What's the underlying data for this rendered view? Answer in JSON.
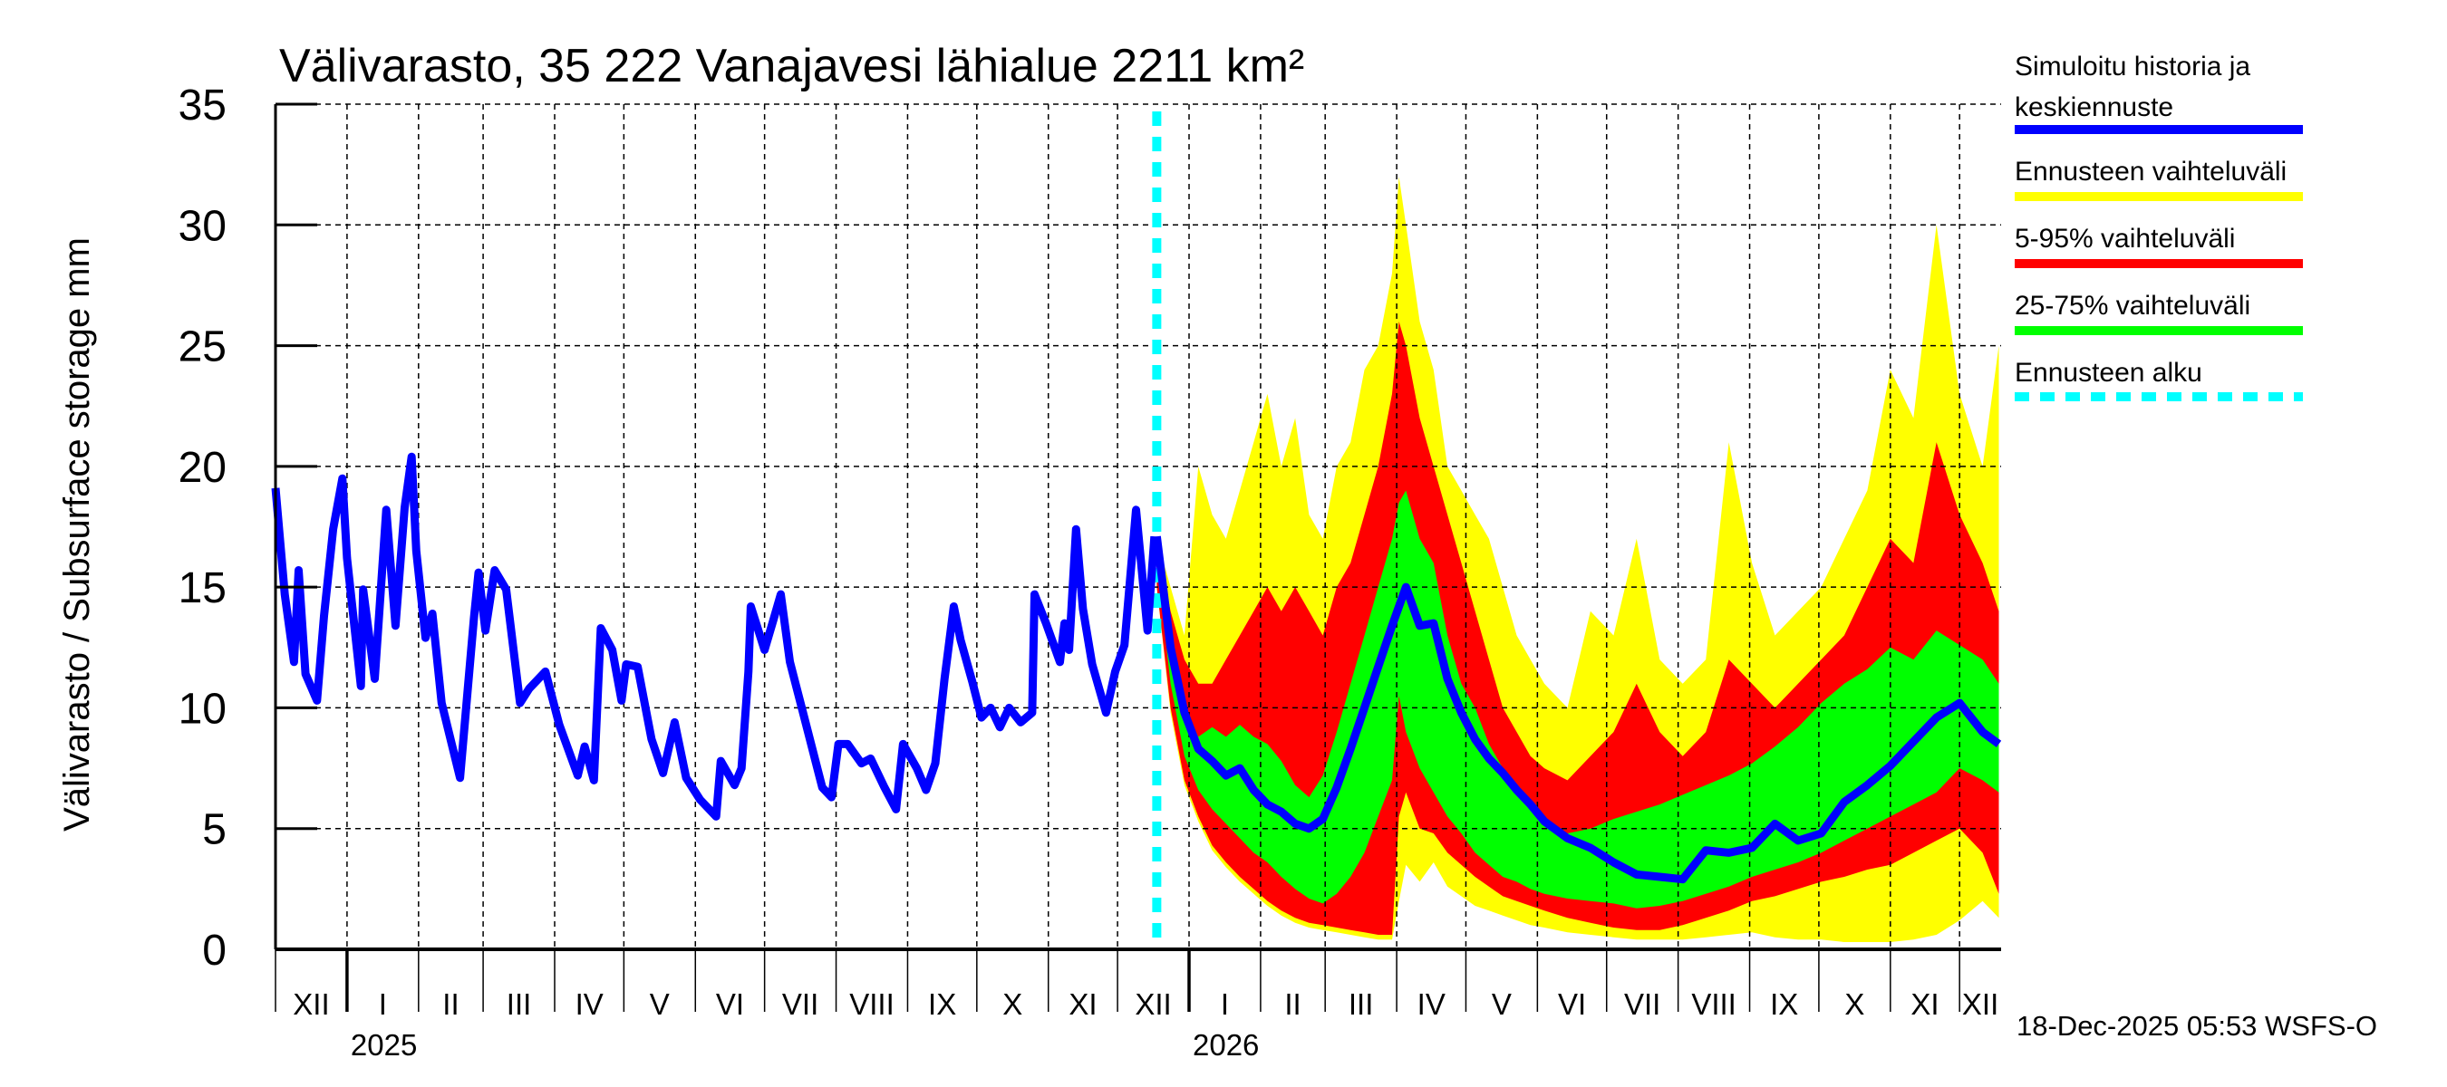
{
  "chart_data": {
    "type": "area",
    "title": "Välivarasto, 35 222 Vanajavesi lähialue 2211 km²",
    "ylabel": "Välivarasto / Subsurface storage  mm",
    "xlabel": "",
    "ylim": [
      0,
      35
    ],
    "yticks": [
      "0",
      "5",
      "10",
      "15",
      "20",
      "25",
      "30",
      "35"
    ],
    "ytick_values": [
      0,
      5,
      10,
      15,
      20,
      25,
      30,
      35
    ],
    "x_unit": "days since 2024-12-01",
    "xlim": [
      0,
      748
    ],
    "grid": true,
    "month_labels": [
      {
        "label": "XII",
        "start": 0,
        "end": 31
      },
      {
        "label": "I",
        "start": 31,
        "end": 62
      },
      {
        "label": "II",
        "start": 62,
        "end": 90
      },
      {
        "label": "III",
        "start": 90,
        "end": 121
      },
      {
        "label": "IV",
        "start": 121,
        "end": 151
      },
      {
        "label": "V",
        "start": 151,
        "end": 182
      },
      {
        "label": "VI",
        "start": 182,
        "end": 212
      },
      {
        "label": "VII",
        "start": 212,
        "end": 243
      },
      {
        "label": "VIII",
        "start": 243,
        "end": 274
      },
      {
        "label": "IX",
        "start": 274,
        "end": 304
      },
      {
        "label": "X",
        "start": 304,
        "end": 335
      },
      {
        "label": "XI",
        "start": 335,
        "end": 365
      },
      {
        "label": "XII",
        "start": 365,
        "end": 396
      },
      {
        "label": "I",
        "start": 396,
        "end": 427
      },
      {
        "label": "II",
        "start": 427,
        "end": 455
      },
      {
        "label": "III",
        "start": 455,
        "end": 486
      },
      {
        "label": "IV",
        "start": 486,
        "end": 516
      },
      {
        "label": "V",
        "start": 516,
        "end": 547
      },
      {
        "label": "VI",
        "start": 547,
        "end": 577
      },
      {
        "label": "VII",
        "start": 577,
        "end": 608
      },
      {
        "label": "VIII",
        "start": 608,
        "end": 639
      },
      {
        "label": "IX",
        "start": 639,
        "end": 669
      },
      {
        "label": "X",
        "start": 669,
        "end": 700
      },
      {
        "label": "XI",
        "start": 700,
        "end": 730
      },
      {
        "label": "XII",
        "start": 730,
        "end": 748
      }
    ],
    "year_labels": [
      {
        "label": "2025",
        "day": 31
      },
      {
        "label": "2026",
        "day": 396
      }
    ],
    "forecast_start_day": 382,
    "legend": {
      "placement": "right",
      "entries": [
        {
          "label_lines": [
            "Simuloitu historia ja",
            "keskiennuste"
          ],
          "color": "#0000ff",
          "style": "solid"
        },
        {
          "label_lines": [
            "Ennusteen vaihteluväli"
          ],
          "color": "#ffff00",
          "style": "solid"
        },
        {
          "label_lines": [
            "5-95% vaihteluväli"
          ],
          "color": "#ff0000",
          "style": "solid"
        },
        {
          "label_lines": [
            "25-75% vaihteluväli"
          ],
          "color": "#00ff00",
          "style": "solid"
        },
        {
          "label_lines": [
            "Ennusteen alku"
          ],
          "color": "#00ffff",
          "style": "dashed"
        }
      ]
    },
    "history": {
      "name": "Simuloitu historia ja keskiennuste",
      "days": [
        0,
        4,
        8,
        10,
        13,
        18,
        21,
        25,
        29,
        31,
        37,
        38,
        43,
        48,
        52,
        56,
        59,
        61,
        65,
        68,
        72,
        80,
        86,
        88,
        91,
        95,
        100,
        106,
        110,
        117,
        123,
        131,
        134,
        138,
        141,
        146,
        150,
        152,
        157,
        163,
        168,
        173,
        178,
        184,
        191,
        193,
        199,
        202,
        205,
        206,
        212,
        216,
        219,
        223,
        230,
        237,
        241,
        244,
        248,
        254,
        258,
        264,
        269,
        272,
        278,
        282,
        286,
        290,
        294,
        297,
        302,
        306,
        310,
        314,
        318,
        323,
        328,
        329,
        334,
        340,
        342,
        344,
        347,
        350,
        354,
        360,
        364,
        368,
        373,
        378,
        381
      ],
      "values": [
        19.1,
        14.7,
        11.9,
        15.7,
        11.4,
        10.3,
        13.8,
        17.4,
        19.5,
        16.2,
        10.9,
        14.9,
        11.2,
        18.2,
        13.4,
        18.3,
        20.4,
        16.5,
        12.9,
        13.9,
        10.2,
        7.1,
        13.7,
        15.6,
        13.2,
        15.7,
        14.9,
        10.2,
        10.8,
        11.5,
        9.3,
        7.2,
        8.4,
        7.0,
        13.3,
        12.4,
        10.3,
        11.8,
        11.7,
        8.7,
        7.3,
        9.4,
        7.1,
        6.2,
        5.5,
        7.8,
        6.8,
        7.5,
        11.5,
        14.2,
        12.4,
        13.7,
        14.7,
        11.9,
        9.3,
        6.7,
        6.3,
        8.5,
        8.5,
        7.7,
        7.9,
        6.7,
        5.8,
        8.5,
        7.5,
        6.6,
        7.7,
        11.2,
        14.2,
        12.8,
        11.1,
        9.6,
        10.0,
        9.2,
        10.0,
        9.4,
        9.8,
        14.7,
        13.5,
        11.9,
        13.5,
        12.4,
        17.4,
        14.1,
        11.8,
        9.8,
        11.5,
        12.6,
        18.2,
        13.2,
        17.1
      ]
    },
    "forecast": {
      "days": [
        382,
        388,
        394,
        400,
        406,
        412,
        418,
        424,
        430,
        436,
        442,
        448,
        454,
        460,
        466,
        472,
        478,
        484,
        487,
        490,
        496,
        502,
        508,
        514,
        520,
        526,
        532,
        538,
        544,
        550,
        560,
        570,
        580,
        590,
        600,
        610,
        620,
        630,
        640,
        650,
        660,
        670,
        680,
        690,
        700,
        710,
        720,
        730,
        740,
        747
      ],
      "median": [
        17.1,
        12.5,
        9.8,
        8.3,
        7.8,
        7.2,
        7.5,
        6.6,
        6.0,
        5.7,
        5.2,
        5.0,
        5.4,
        6.7,
        8.3,
        10.0,
        11.7,
        13.4,
        14.2,
        15.0,
        13.4,
        13.5,
        11.2,
        9.8,
        8.7,
        7.9,
        7.3,
        6.6,
        6.0,
        5.3,
        4.6,
        4.2,
        3.6,
        3.1,
        3.0,
        2.9,
        4.1,
        4.0,
        4.2,
        5.2,
        4.5,
        4.8,
        6.1,
        6.8,
        7.6,
        8.6,
        9.6,
        10.2,
        9.0,
        8.5
      ],
      "yellow_hi": [
        17,
        15,
        13,
        20,
        18,
        17,
        19,
        21,
        23,
        20,
        22,
        18,
        17,
        20,
        21,
        24,
        25,
        28,
        32,
        30,
        26,
        24,
        20,
        19,
        18,
        17,
        15,
        13,
        12,
        11,
        10,
        14,
        13,
        17,
        12,
        11,
        12,
        21,
        16,
        13,
        14,
        15,
        17,
        19,
        24,
        22,
        30,
        23,
        20,
        25
      ],
      "red_hi": [
        17,
        14,
        12,
        11,
        11,
        12,
        13,
        14,
        15,
        14,
        15,
        14,
        13,
        15,
        16,
        18,
        20,
        23,
        26,
        25,
        22,
        20,
        18,
        16,
        14,
        12,
        10,
        9,
        8,
        7.5,
        7,
        8,
        9,
        11,
        9,
        8,
        9,
        12,
        11,
        10,
        11,
        12,
        13,
        15,
        17,
        16,
        21,
        18,
        16,
        14
      ],
      "green_hi": [
        17,
        13,
        10,
        8.8,
        9.2,
        8.8,
        9.3,
        8.8,
        8.5,
        7.8,
        6.8,
        6.3,
        7.2,
        9,
        11,
        13,
        15,
        17,
        18.5,
        19,
        17,
        16,
        13,
        11,
        10,
        8.5,
        7.5,
        6.5,
        5.8,
        5.2,
        4.8,
        5.0,
        5.4,
        5.7,
        6.0,
        6.4,
        6.8,
        7.2,
        7.7,
        8.4,
        9.2,
        10.2,
        11.0,
        11.6,
        12.5,
        12.0,
        13.2,
        12.6,
        12.0,
        11.0
      ],
      "green_lo": [
        16,
        11,
        8,
        6.6,
        5.8,
        5.2,
        4.6,
        4.0,
        3.6,
        3.0,
        2.5,
        2.1,
        1.9,
        2.3,
        3.0,
        4.0,
        5.5,
        7.0,
        10.5,
        9.0,
        7.5,
        6.5,
        5.5,
        4.8,
        4.0,
        3.5,
        3.0,
        2.8,
        2.5,
        2.3,
        2.1,
        2.0,
        1.9,
        1.7,
        1.8,
        2.0,
        2.3,
        2.6,
        3.0,
        3.3,
        3.6,
        4.0,
        4.5,
        5.0,
        5.5,
        6.0,
        6.5,
        7.5,
        7.0,
        6.5
      ],
      "red_lo": [
        15,
        10,
        7,
        5.5,
        4.3,
        3.6,
        3.0,
        2.5,
        2.0,
        1.6,
        1.3,
        1.1,
        1.0,
        0.9,
        0.8,
        0.7,
        0.6,
        0.6,
        5.5,
        6.5,
        5.0,
        4.8,
        4.0,
        3.5,
        3.0,
        2.6,
        2.2,
        2.0,
        1.8,
        1.6,
        1.3,
        1.1,
        0.9,
        0.8,
        0.8,
        1.0,
        1.3,
        1.6,
        2.0,
        2.2,
        2.5,
        2.8,
        3.0,
        3.3,
        3.5,
        4.0,
        4.5,
        5.0,
        4.0,
        2.3
      ],
      "yellow_lo": [
        15,
        9.8,
        6.8,
        5.3,
        4.1,
        3.4,
        2.8,
        2.3,
        1.8,
        1.4,
        1.1,
        0.9,
        0.8,
        0.7,
        0.6,
        0.5,
        0.4,
        0.4,
        2.0,
        3.5,
        2.8,
        3.6,
        2.6,
        2.2,
        1.8,
        1.6,
        1.4,
        1.2,
        1.0,
        0.9,
        0.7,
        0.6,
        0.5,
        0.4,
        0.4,
        0.4,
        0.5,
        0.6,
        0.7,
        0.5,
        0.4,
        0.4,
        0.3,
        0.3,
        0.3,
        0.4,
        0.6,
        1.2,
        2.0,
        1.3
      ]
    },
    "colors": {
      "history": "#0000ff",
      "yellow": "#ffff00",
      "red": "#ff0000",
      "green": "#00ff00",
      "forecast_start": "#00ffff"
    },
    "timestamp": "18-Dec-2025 05:53 WSFS-O"
  }
}
